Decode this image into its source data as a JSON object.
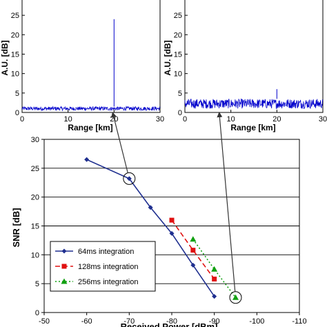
{
  "chart_data": [
    {
      "type": "line",
      "title": "",
      "xlabel": "Range [km]",
      "ylabel": "A.U. [dB]",
      "xlim": [
        0,
        30
      ],
      "ylim": [
        0,
        30
      ],
      "xticks": [
        "0",
        "10",
        "20",
        "30"
      ],
      "yticks": [
        "0",
        "5",
        "10",
        "15",
        "20",
        "25"
      ],
      "noise_floor_db": [
        0.5,
        1.5
      ],
      "peak": {
        "x": 20,
        "y": 24
      },
      "color": "#0000cc"
    },
    {
      "type": "line",
      "title": "",
      "xlabel": "Range [km]",
      "ylabel": "A.U. [dB]",
      "xlim": [
        0,
        30
      ],
      "ylim": [
        0,
        30
      ],
      "xticks": [
        "0",
        "10",
        "20",
        "30"
      ],
      "yticks": [
        "0",
        "5",
        "10",
        "15",
        "20",
        "25"
      ],
      "noise_floor_db": [
        1.0,
        3.5
      ],
      "peak": {
        "x": 20,
        "y": 6
      },
      "color": "#0000cc"
    },
    {
      "type": "line",
      "title": "",
      "xlabel": "Received Power [dBm]",
      "ylabel": "SNR [dB]",
      "xlim": [
        -50,
        -110
      ],
      "ylim": [
        0,
        30
      ],
      "xticks": [
        "-50",
        "-60",
        "-70",
        "-80",
        "-90",
        "-100",
        "-110"
      ],
      "yticks": [
        "0",
        "5",
        "10",
        "15",
        "20",
        "25",
        "30"
      ],
      "grid": true,
      "legend_position": "bottom-left",
      "series": [
        {
          "name": "64ms integration",
          "color": "#1f2f8f",
          "marker": "diamond",
          "dash": "solid",
          "x": [
            -60,
            -70,
            -75,
            -80,
            -85,
            -90
          ],
          "y": [
            26.5,
            23.2,
            18.2,
            13.7,
            8.2,
            2.8
          ]
        },
        {
          "name": "128ms integration",
          "color": "#e01010",
          "marker": "square",
          "dash": "dashed",
          "x": [
            -80,
            -85,
            -90
          ],
          "y": [
            16.0,
            10.8,
            5.8
          ]
        },
        {
          "name": "256ms integration",
          "color": "#10a010",
          "marker": "triangle",
          "dash": "dotted",
          "x": [
            -85,
            -90,
            -95
          ],
          "y": [
            12.7,
            7.5,
            2.6
          ]
        }
      ],
      "annotations": [
        {
          "type": "circle",
          "x": -70,
          "y": 23.2,
          "links_to": "panel-1"
        },
        {
          "type": "circle",
          "x": -95,
          "y": 2.6,
          "links_to": "panel-2"
        }
      ]
    }
  ]
}
